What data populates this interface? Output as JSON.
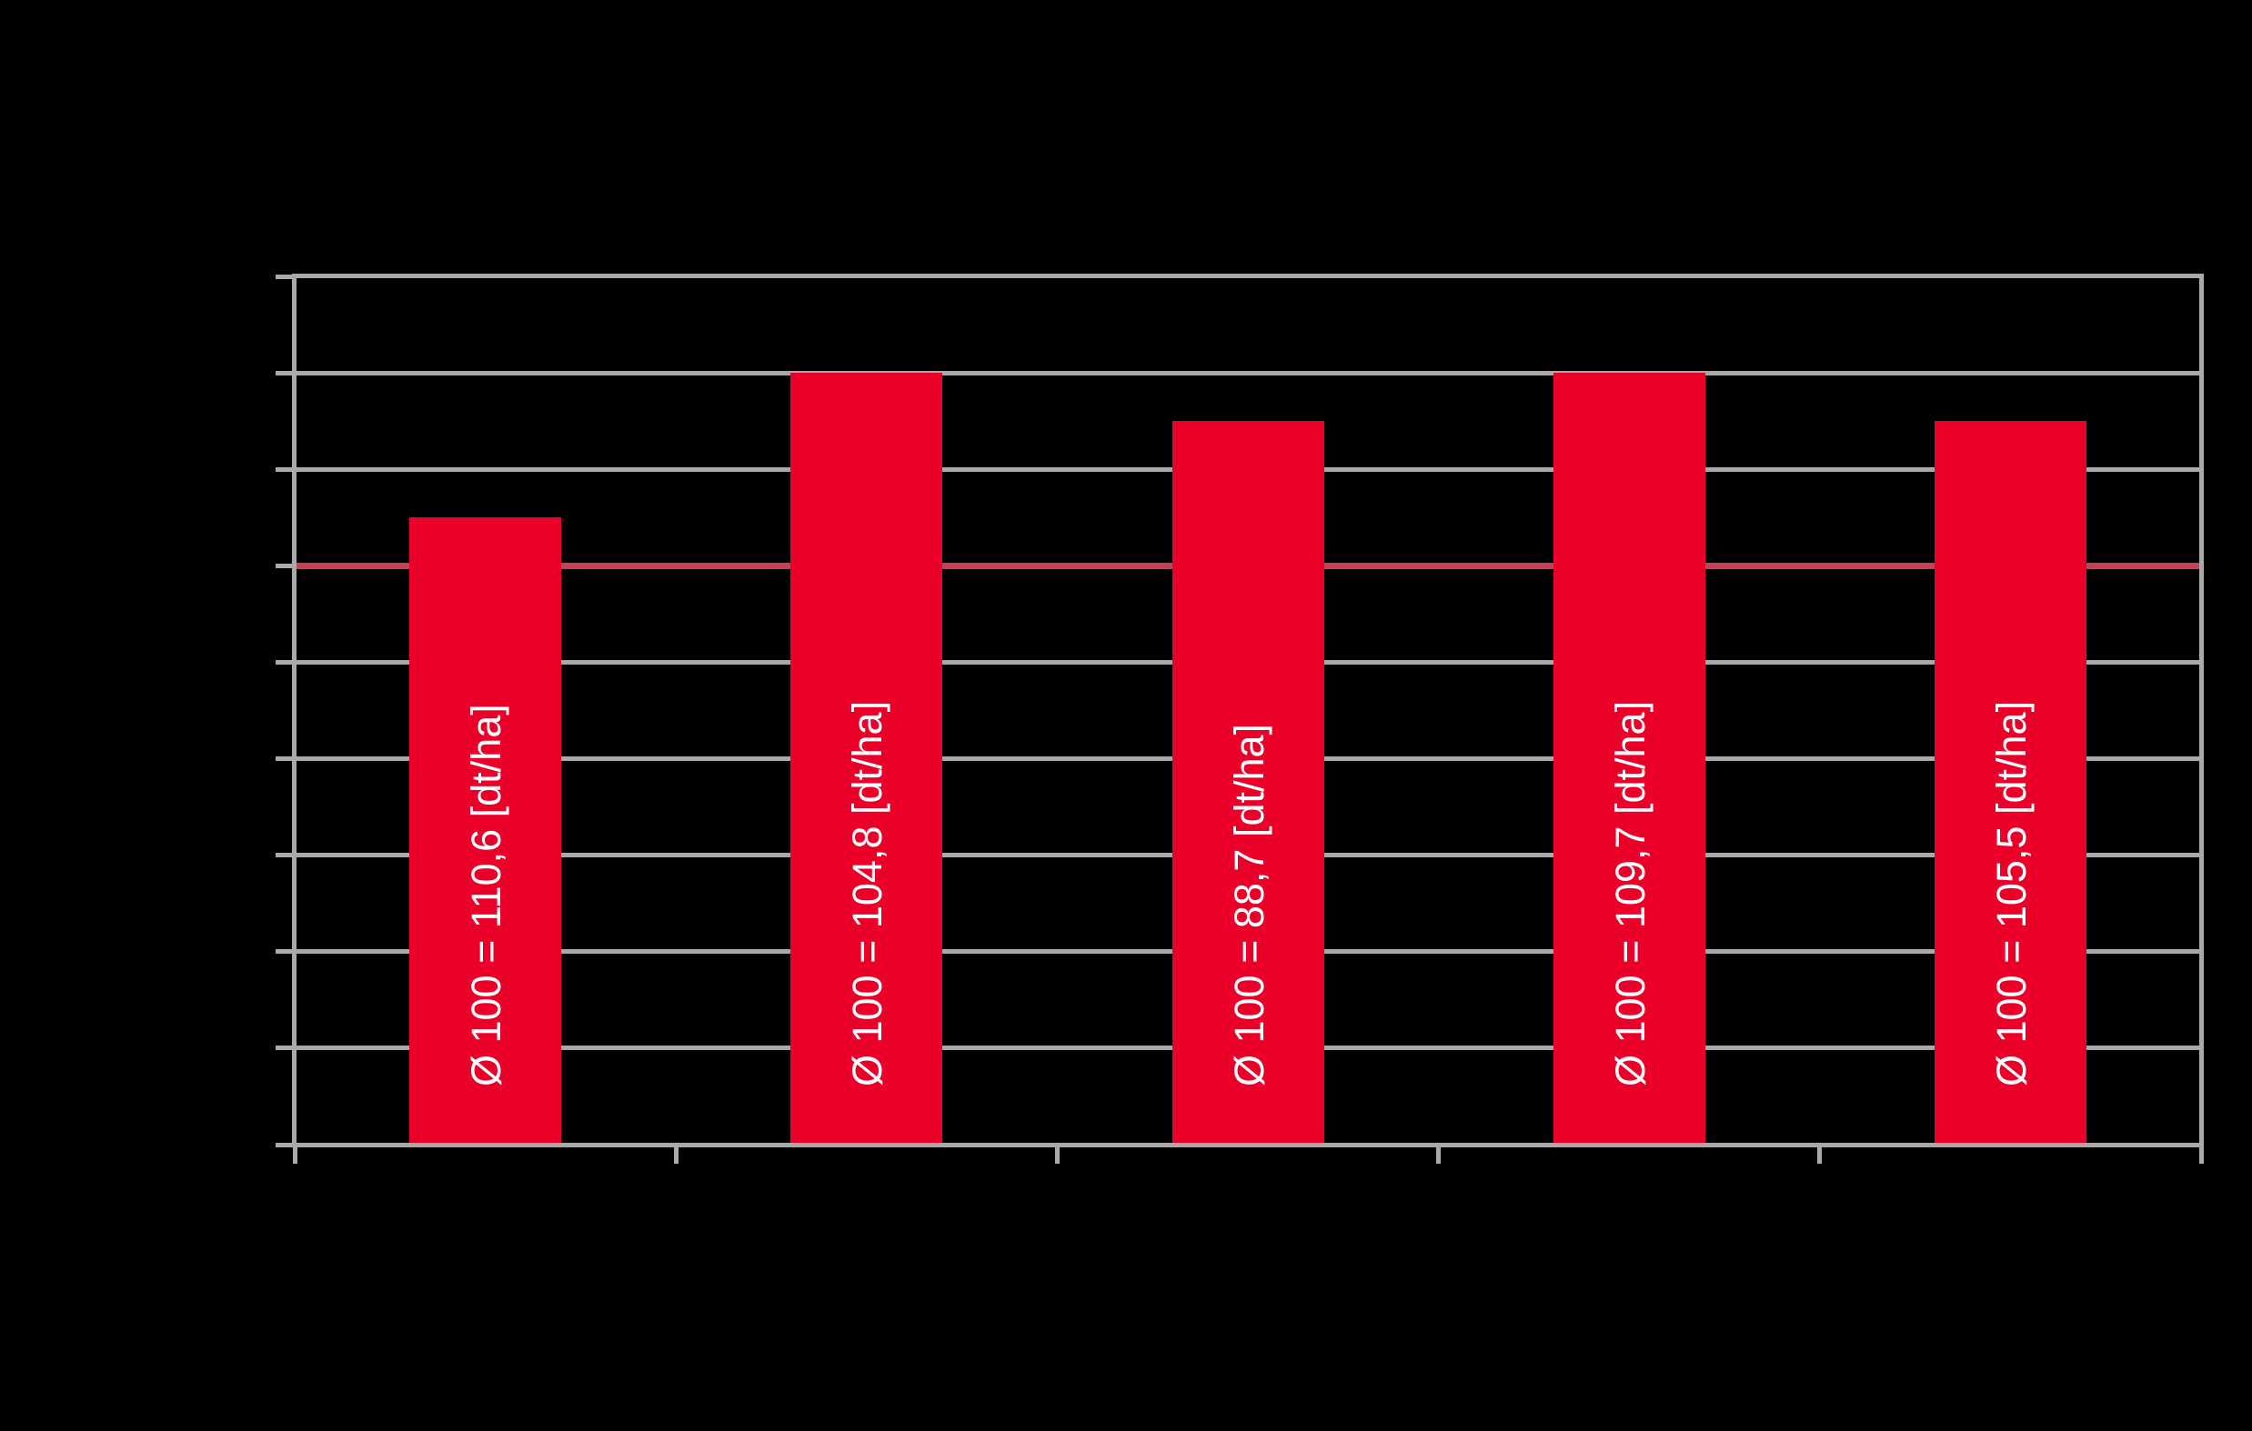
{
  "chart_data": {
    "type": "bar",
    "values": [
      102.5,
      110.0,
      107.5,
      110.0,
      107.5
    ],
    "bar_labels": [
      "Ø 100 = 110,6 [dt/ha]",
      "Ø 100 = 104,8 [dt/ha]",
      "Ø 100 = 88,7 [dt/ha]",
      "Ø 100 = 109,7 [dt/ha]",
      "Ø 100 = 105,5 [dt/ha]"
    ],
    "reference_line": {
      "value": 100
    },
    "ylim": [
      70,
      115
    ],
    "gridline_step": 5,
    "grid": "horizontal",
    "legend": "none",
    "x_axis_tick_labels_visible": false,
    "y_axis_tick_labels_visible": false,
    "colors": {
      "background": "#000000",
      "bar": "#EA0029",
      "bar_label_text": "#FFFFFF",
      "gridline": "#A9A9A9",
      "axis_frame": "#A9A9A9",
      "tick": "#ABABAB",
      "reference_line": "#C84058"
    }
  }
}
